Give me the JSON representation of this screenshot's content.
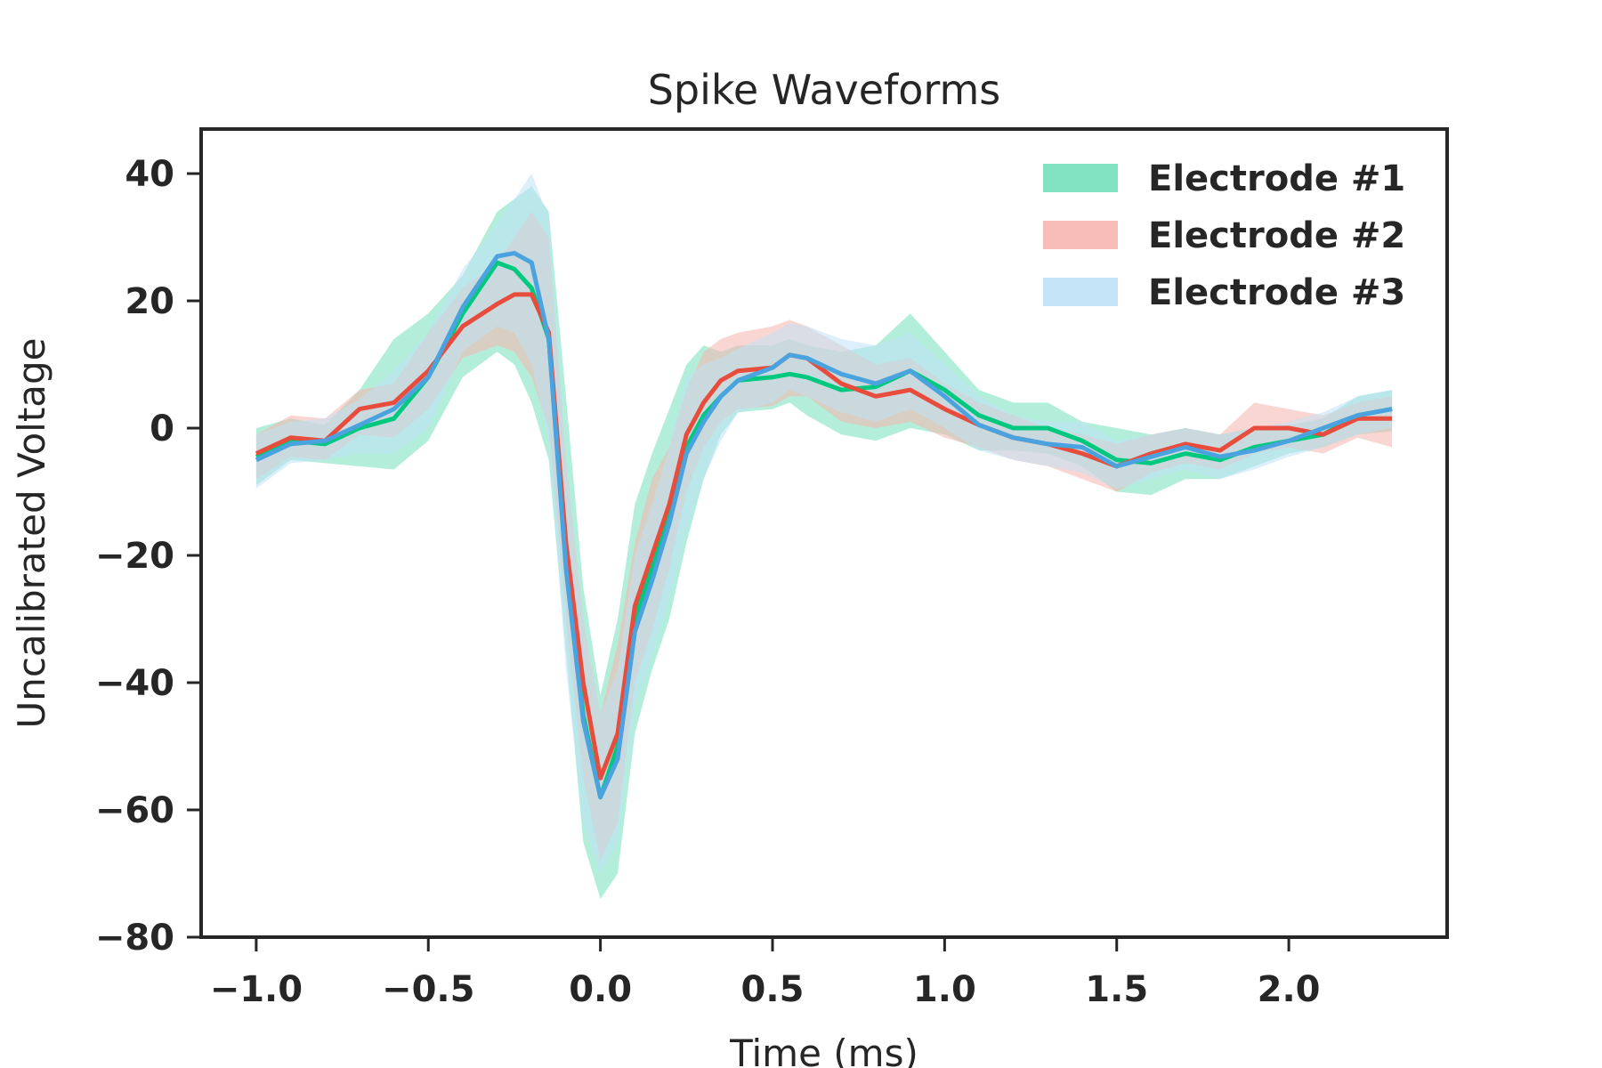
{
  "chart_data": {
    "type": "line",
    "title": "Spike Waveforms",
    "xlabel": "Time (ms)",
    "ylabel": "Uncalibrated Voltage",
    "xlim": [
      -1.16,
      2.46
    ],
    "ylim": [
      -80,
      47
    ],
    "xticks": [
      -1.0,
      -0.5,
      0.0,
      0.5,
      1.0,
      1.5,
      2.0
    ],
    "xtick_labels": [
      "−1.0",
      "−0.5",
      "0.0",
      "0.5",
      "1.0",
      "1.5",
      "2.0"
    ],
    "yticks": [
      -80,
      -60,
      -40,
      -20,
      0,
      20,
      40
    ],
    "ytick_labels": [
      "−80",
      "−60",
      "−40",
      "−20",
      "0",
      "20",
      "40"
    ],
    "grid": false,
    "legend_position": "top-right",
    "legend_style": "shaded bands",
    "x": [
      -1.0,
      -0.9,
      -0.8,
      -0.7,
      -0.6,
      -0.5,
      -0.4,
      -0.3,
      -0.25,
      -0.2,
      -0.15,
      -0.1,
      -0.05,
      0.0,
      0.05,
      0.1,
      0.15,
      0.2,
      0.25,
      0.3,
      0.35,
      0.4,
      0.5,
      0.55,
      0.6,
      0.7,
      0.8,
      0.9,
      1.0,
      1.1,
      1.2,
      1.3,
      1.4,
      1.5,
      1.6,
      1.7,
      1.8,
      1.9,
      2.0,
      2.1,
      2.2,
      2.3
    ],
    "series": [
      {
        "name": "Electrode #1",
        "color": "#00c97f",
        "band_color": "#74e0bd",
        "values": [
          -4.5,
          -2,
          -2.5,
          0,
          1.5,
          8,
          18,
          26,
          25,
          22,
          14,
          -20,
          -45,
          -58,
          -50,
          -30,
          -22,
          -14,
          -3,
          2,
          5,
          7.5,
          8,
          8.5,
          8,
          6,
          6.5,
          9,
          6,
          2,
          0,
          0,
          -2,
          -5,
          -5.5,
          -4,
          -5,
          -3,
          -2,
          -1,
          2,
          3
        ],
        "lower": [
          -9,
          -5,
          -5.5,
          -6,
          -6.5,
          -2,
          8,
          12,
          10,
          4,
          -5,
          -35,
          -65,
          -74,
          -70,
          -48,
          -38,
          -30,
          -18,
          -8,
          -1,
          2.5,
          3,
          4,
          2,
          -1,
          -2,
          0,
          -1,
          -3.5,
          -3.5,
          -4,
          -6,
          -10,
          -10.5,
          -8,
          -8,
          -6,
          -4,
          -3,
          -1,
          -0.5
        ],
        "upper": [
          0,
          1.5,
          0.5,
          6,
          14,
          18,
          24,
          34,
          36,
          38,
          34,
          5,
          -25,
          -42,
          -30,
          -12,
          -4,
          3,
          10,
          13,
          12,
          13,
          13,
          14,
          13,
          12,
          13,
          18,
          12,
          6,
          4,
          4,
          1,
          0,
          -1,
          0,
          -1,
          0,
          0.5,
          1.5,
          5,
          6
        ]
      },
      {
        "name": "Electrode #2",
        "color": "#e74c3c",
        "band_color": "#f5b5ad",
        "values": [
          -4,
          -1.5,
          -2,
          3,
          4,
          9,
          16,
          19.5,
          21,
          21,
          15,
          -18,
          -40,
          -55,
          -48,
          -28,
          -20,
          -12,
          -1,
          4,
          7.5,
          9,
          9.5,
          11.5,
          11,
          7,
          5,
          6,
          3,
          0.5,
          -1.5,
          -2.5,
          -4,
          -6,
          -4,
          -2.5,
          -3.5,
          0,
          0,
          -1,
          1.5,
          1.5
        ],
        "lower": [
          -8,
          -4.5,
          -5,
          -1,
          -1.5,
          3,
          11,
          13,
          12,
          8,
          0,
          -30,
          -55,
          -68,
          -62,
          -40,
          -32,
          -22,
          -10,
          -3,
          1,
          3,
          3.5,
          5,
          5,
          1,
          0,
          1,
          -1.5,
          -3,
          -5,
          -6,
          -8,
          -10,
          -7,
          -5.5,
          -6.5,
          -4,
          -3,
          -4,
          -1.5,
          -3
        ],
        "upper": [
          -1,
          2,
          1.5,
          6,
          7,
          15,
          22,
          26,
          30,
          34,
          30,
          -5,
          -30,
          -45,
          -34,
          -18,
          -8,
          -3,
          6,
          12,
          14,
          15,
          16,
          17,
          16,
          13,
          10,
          11,
          7,
          4,
          2,
          0,
          -1,
          -2.5,
          -1,
          0,
          -1,
          4,
          3,
          2,
          4,
          5
        ]
      },
      {
        "name": "Electrode #3",
        "color": "#4aa3df",
        "band_color": "#bfe1f6",
        "values": [
          -5,
          -2.5,
          -2,
          0.5,
          3,
          8,
          19,
          27,
          27.5,
          26,
          14,
          -22,
          -46,
          -58,
          -52,
          -32,
          -24,
          -15,
          -4,
          1,
          5,
          7.5,
          9.5,
          11.5,
          11,
          8.5,
          7,
          9,
          5,
          0.5,
          -1.5,
          -2.5,
          -3,
          -6,
          -4.5,
          -3,
          -4.5,
          -3.5,
          -2,
          0,
          2,
          3
        ],
        "lower": [
          -9.5,
          -5.5,
          -5,
          -4,
          -4,
          0,
          12,
          16,
          15,
          10,
          -2,
          -38,
          -62,
          -70,
          -65,
          -44,
          -36,
          -27,
          -16,
          -8,
          -2,
          2.5,
          4,
          6,
          5,
          2.5,
          1,
          3,
          0,
          -3.5,
          -5,
          -6,
          -7,
          -9.5,
          -8,
          -6.5,
          -8,
          -6.5,
          -4.5,
          -3,
          -1,
          0
        ],
        "upper": [
          -1,
          1,
          1.5,
          4.5,
          9,
          15,
          25,
          32,
          36,
          40,
          33,
          -5,
          -30,
          -45,
          -38,
          -20,
          -12,
          -3,
          8,
          10,
          11,
          12.5,
          15,
          16.5,
          16,
          14,
          13,
          15,
          10,
          5,
          2,
          1,
          1,
          -2,
          -1,
          0,
          -1,
          0,
          1,
          2.5,
          5,
          6
        ]
      }
    ]
  }
}
